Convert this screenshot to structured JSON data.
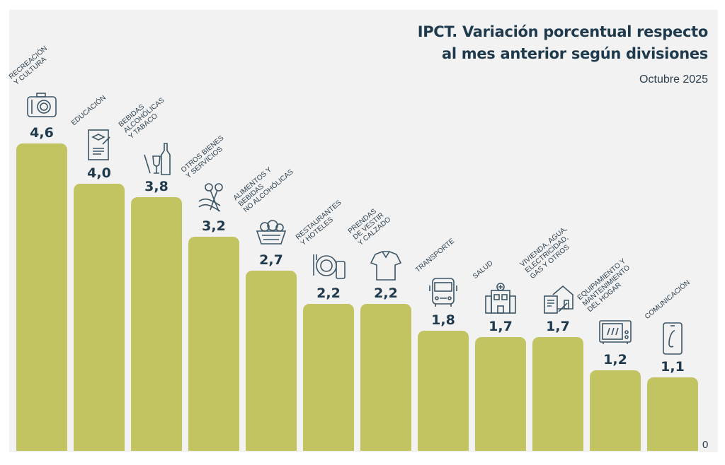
{
  "chart_data": {
    "type": "bar",
    "title": "IPCT. Variación porcentual respecto al mes anterior según divisiones",
    "title_lines": [
      "IPCT. Variación porcentual respecto",
      "al mes anterior según divisiones"
    ],
    "subtitle": "Octubre 2025",
    "baseline_label": "0",
    "ylim": [
      0,
      4.6
    ],
    "bar_color": "#c2c462",
    "text_color": "#1f3a4d",
    "categories": [
      "RECREACIÓN\nY CULTURA",
      "EDUCACIÓN",
      "BEBIDAS\nALCOHÓLICAS\nY TABACO",
      "OTROS BIENES\nY SERVICIOS",
      "ALIMENTOS Y\nBEBIDAS\nNO ALCOHÓLICAS",
      "RESTAURANTES\nY HOTELES",
      "PRENDAS\nDE VESTIR\nY CALZADO",
      "TRANSPORTE",
      "SALUD",
      "VIVIENDA, AGUA,\nELECTRICIDAD,\nGAS Y OTROS",
      "EQUIPAMIENTO Y\nMANTENIMIENTO\nDEL HOGAR",
      "COMUNICACIÓN"
    ],
    "values": [
      4.6,
      4.0,
      3.8,
      3.2,
      2.7,
      2.2,
      2.2,
      1.8,
      1.7,
      1.7,
      1.2,
      1.1
    ],
    "value_labels": [
      "4,6",
      "4,0",
      "3,8",
      "3,2",
      "2,7",
      "2,2",
      "2,2",
      "1,8",
      "1,7",
      "1,7",
      "1,2",
      "1,1"
    ],
    "icons": [
      "camera-icon",
      "diploma-icon",
      "bottle-glass-icon",
      "scissors-ribbon-icon",
      "food-basket-icon",
      "plate-cutlery-icon",
      "shirt-icon",
      "bus-icon",
      "hospital-icon",
      "house-document-icon",
      "microwave-icon",
      "phone-icon"
    ]
  }
}
